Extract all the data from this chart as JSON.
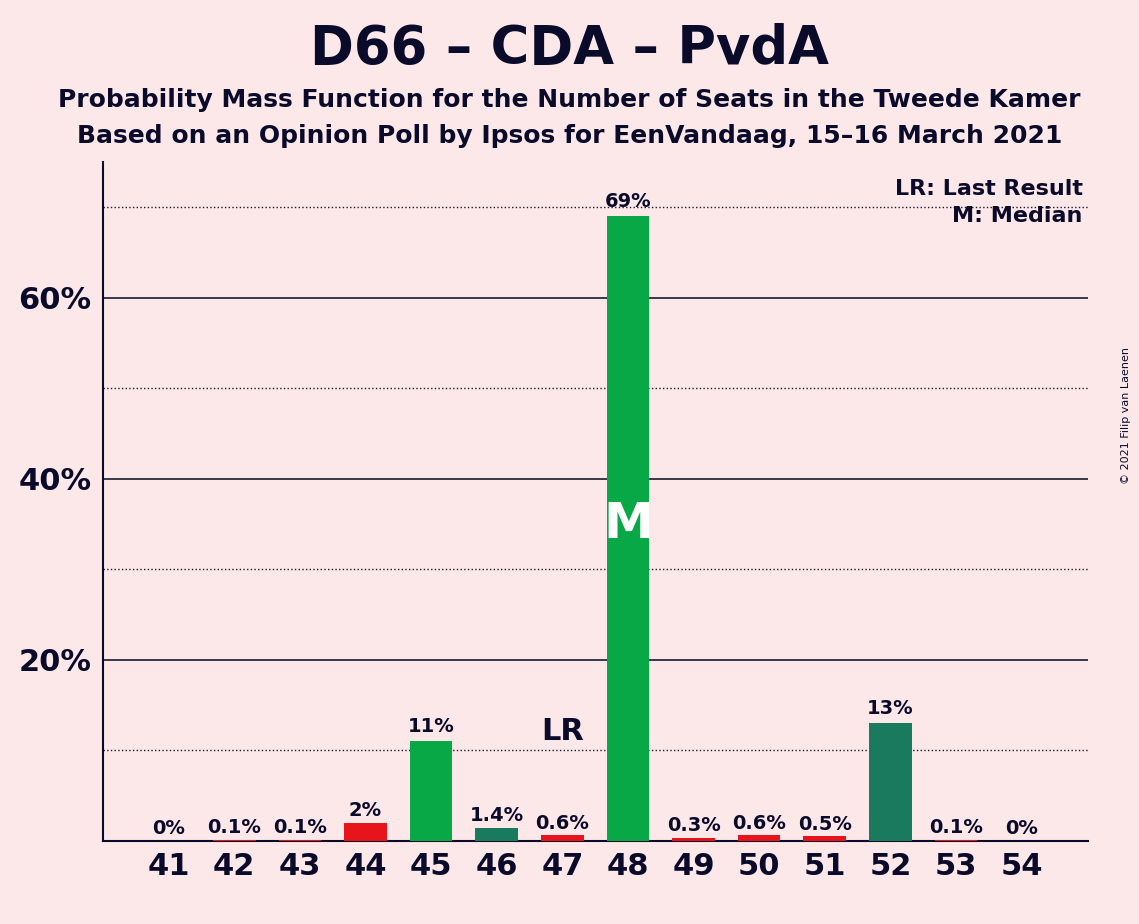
{
  "title": "D66 – CDA – PvdA",
  "subtitle1": "Probability Mass Function for the Number of Seats in the Tweede Kamer",
  "subtitle2": "Based on an Opinion Poll by Ipsos for EenVandaag, 15–16 March 2021",
  "copyright": "© 2021 Filip van Laenen",
  "categories": [
    41,
    42,
    43,
    44,
    45,
    46,
    47,
    48,
    49,
    50,
    51,
    52,
    53,
    54
  ],
  "values": [
    0.0,
    0.1,
    0.1,
    2.0,
    11.0,
    1.4,
    0.6,
    69.0,
    0.3,
    0.6,
    0.5,
    13.0,
    0.1,
    0.0
  ],
  "bar_colors": [
    "#e8141c",
    "#e8141c",
    "#e8141c",
    "#e8141c",
    "#09a846",
    "#1a7a5e",
    "#e8141c",
    "#09a846",
    "#e8141c",
    "#e8141c",
    "#e8141c",
    "#1a7a5e",
    "#e8141c",
    "#e8141c"
  ],
  "labels": [
    "0%",
    "0.1%",
    "0.1%",
    "2%",
    "11%",
    "1.4%",
    "0.6%",
    "69%",
    "0.3%",
    "0.6%",
    "0.5%",
    "13%",
    "0.1%",
    "0%"
  ],
  "median_seat": 48,
  "lr_seat": 47,
  "median_label": "M",
  "lr_label": "LR",
  "legend_lr": "LR: Last Result",
  "legend_m": "M: Median",
  "ylim": [
    0,
    75
  ],
  "solid_gridlines": [
    20,
    40,
    60
  ],
  "dotted_gridlines": [
    10,
    30,
    50,
    70
  ],
  "ytick_positions": [
    20,
    40,
    60
  ],
  "ytick_labels": [
    "20%",
    "40%",
    "60%"
  ],
  "background_color": "#fce8e8",
  "grid_color": "#1a1a2e",
  "title_fontsize": 38,
  "subtitle_fontsize": 18,
  "bar_width": 0.65,
  "tick_fontsize": 22
}
